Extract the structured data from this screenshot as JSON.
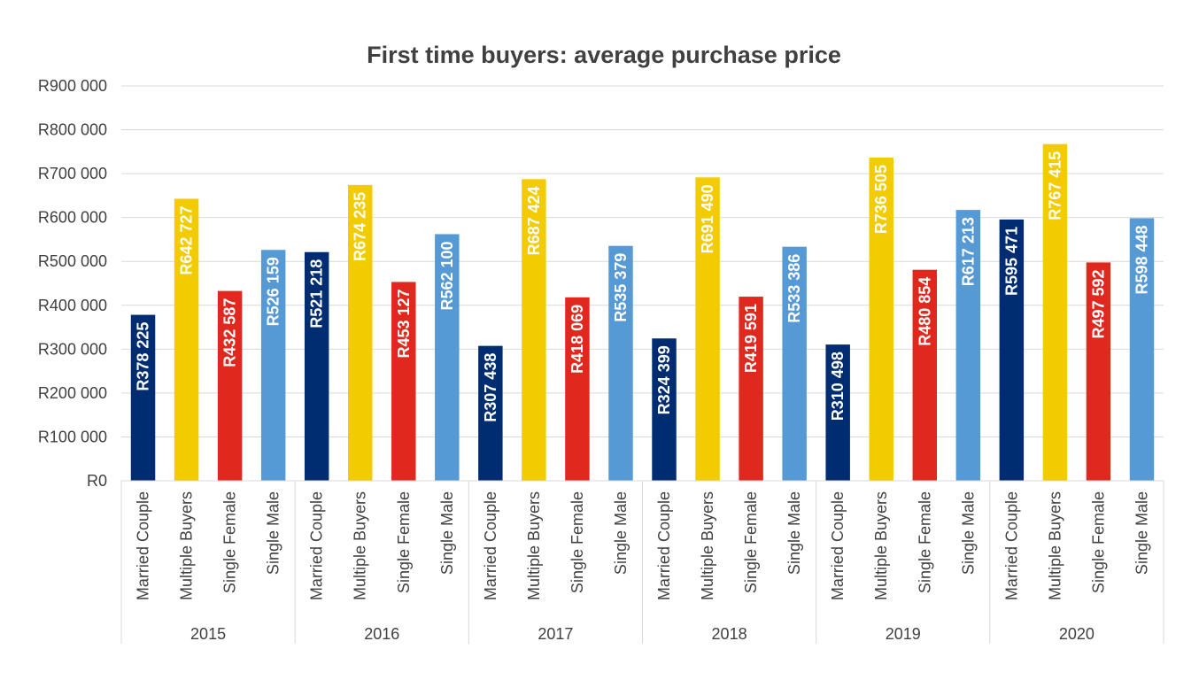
{
  "chart_data": {
    "type": "bar",
    "title": "First time buyers: average purchase price",
    "xlabel": "",
    "ylabel": "",
    "ylim": [
      0,
      900000
    ],
    "y_ticks": [
      "R0",
      "R100 000",
      "R200 000",
      "R300 000",
      "R400 000",
      "R500 000",
      "R600 000",
      "R700 000",
      "R800 000",
      "R900 000"
    ],
    "grid": true,
    "legend": "none",
    "groups": [
      "2015",
      "2016",
      "2017",
      "2018",
      "2019",
      "2020"
    ],
    "categories": [
      "Married Couple",
      "Multiple Buyers",
      "Single Female",
      "Single Male"
    ],
    "colors": [
      "#002D72",
      "#F2CC00",
      "#E0281E",
      "#5599D5"
    ],
    "values": [
      [
        378225,
        642727,
        432587,
        526159
      ],
      [
        521218,
        674235,
        453127,
        562100
      ],
      [
        307438,
        687424,
        418069,
        535379
      ],
      [
        324399,
        691490,
        419591,
        533386
      ],
      [
        310498,
        736505,
        480854,
        617213
      ],
      [
        595471,
        767415,
        497592,
        598448
      ]
    ],
    "data_labels": [
      [
        "R378 225",
        "R642 727",
        "R432 587",
        "R526 159"
      ],
      [
        "R521 218",
        "R674 235",
        "R453 127",
        "R562 100"
      ],
      [
        "R307 438",
        "R687 424",
        "R418 069",
        "R535 379"
      ],
      [
        "R324 399",
        "R691 490",
        "R419 591",
        "R533 386"
      ],
      [
        "R310 498",
        "R736 505",
        "R480 854",
        "R617 213"
      ],
      [
        "R595 471",
        "R767 415",
        "R497 592",
        "R598 448"
      ]
    ]
  }
}
